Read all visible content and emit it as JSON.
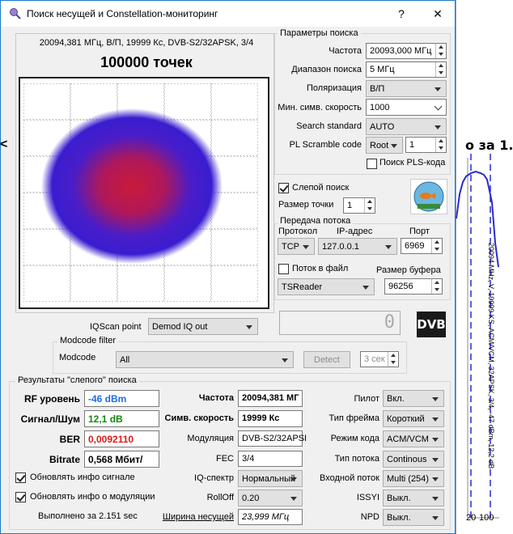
{
  "window": {
    "title": "Поиск несущей и Constellation-мониторинг",
    "help_glyph": "?",
    "close_glyph": "✕"
  },
  "background": {
    "heading_fragment": "о за 1.",
    "left_fragment": "<",
    "vertical_text": "20094 МHz, V, 19999 KS, ACM/VCM, 32APSK, 3/4, -47 dBm, 12,2 dB",
    "axis_labels": [
      "20",
      "100"
    ]
  },
  "constellation": {
    "header": "20094,381 МГц, В/П, 19999 Кс, DVB-S2/32APSK, 3/4",
    "points_label": "100000 точек"
  },
  "iqscan": {
    "label": "IQScan point",
    "value": "Demod IQ out"
  },
  "status_box": {
    "digit": "0"
  },
  "dvb_logo": "DVB",
  "modcode_filter": {
    "group_label": "Modcode filter",
    "modcode_label": "Modcode",
    "modcode_value": "All",
    "detect_label": "Detect",
    "seconds_value": "3 сек"
  },
  "search_params": {
    "group_label": "Параметры поиска",
    "frequency_label": "Частота",
    "frequency_value": "20093,000 МГц",
    "range_label": "Диапазон поиска",
    "range_value": "5 МГц",
    "polarization_label": "Поляризация",
    "polarization_value": "В/П",
    "min_symrate_label": "Мин. симв. скорость",
    "min_symrate_value": "1000",
    "search_standard_label": "Search standard",
    "search_standard_value": "AUTO",
    "pl_scramble_label": "PL Scramble code",
    "pl_scramble_mode": "Root",
    "pl_scramble_value": "1",
    "pls_search_label": "Поиск PLS-кода"
  },
  "blind": {
    "blind_search_label": "Слепой поиск",
    "point_size_label": "Размер точки",
    "point_size_value": "1"
  },
  "stream": {
    "group_label": "Передача потока",
    "protocol_header": "Протокол",
    "ip_header": "IP-адрес",
    "port_header": "Порт",
    "protocol_value": "TCP",
    "ip_value": "127.0.0.1",
    "port_value": "6969",
    "to_file_label": "Поток в файл",
    "buffer_label": "Размер буфера",
    "reader_value": "TSReader",
    "buffer_value": "96256"
  },
  "results": {
    "group_label": "Результаты \"слепого\" поиска",
    "rf_label": "RF уровень",
    "rf_value": "-46 dBm",
    "snr_label": "Сигнал/Шум",
    "snr_value": "12,1 dB",
    "ber_label": "BER",
    "ber_value": "0,0092110",
    "bitrate_label": "Bitrate",
    "bitrate_value": "0,568 Мбит/",
    "update_signal_label": "Обновлять инфо сигнале",
    "update_mod_label": "Обновлять инфо о модуляции",
    "elapsed": "Выполнено за 2.151 sec",
    "freq_label": "Частота",
    "freq_value": "20094,381 МГ",
    "symrate_label": "Симв. скорость",
    "symrate_value": "19999 Кс",
    "modulation_label": "Модуляция",
    "modulation_value": "DVB-S2/32APSI",
    "fec_label": "FEC",
    "fec_value": "3/4",
    "iq_spectrum_label": "IQ-спектр",
    "iq_spectrum_value": "Нормальный",
    "rolloff_label": "RollOff",
    "rolloff_value": "0.20",
    "carrier_width_label": "Ширина несущей",
    "carrier_width_value": "23,999 МГц",
    "pilot_label": "Пилот",
    "pilot_value": "Вкл.",
    "frame_type_label": "Тип фрейма",
    "frame_type_value": "Короткий",
    "code_mode_label": "Режим кода",
    "code_mode_value": "ACM/VCM",
    "stream_type_label": "Тип потока",
    "stream_type_value": "Continous",
    "input_stream_label": "Входной поток",
    "input_stream_value": "Multi (254)",
    "issyi_label": "ISSYI",
    "issyi_value": "Выкл.",
    "npd_label": "NPD",
    "npd_value": "Выкл."
  },
  "colors": {
    "accent_border": "#1979ca",
    "rf_value_color": "#1e6ee6",
    "snr_value_color": "#118a11",
    "ber_value_color": "#e01818",
    "constellation_outer": "#3a1dd0",
    "constellation_inner": "#c81a3a"
  }
}
